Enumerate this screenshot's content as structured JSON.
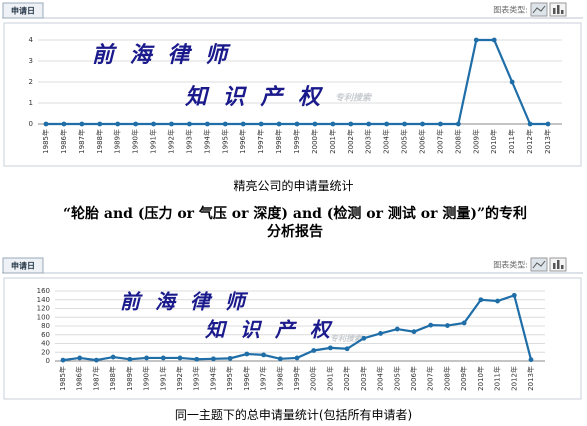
{
  "heading": "“轮胎 and (压力 or 气压 or 深度) and (检测 or 测试 or 测量)”的专利分析报告",
  "chart_data": [
    {
      "type": "line",
      "tab": "申请日",
      "chart_type_label": "图表类型:",
      "annotations": [
        "前 海 律 师",
        "知 识 产 权",
        "专利搜索"
      ],
      "caption": "精亮公司的申请量统计",
      "categories": [
        "1985年",
        "1986年",
        "1987年",
        "1988年",
        "1989年",
        "1990年",
        "1991年",
        "1992年",
        "1993年",
        "1994年",
        "1995年",
        "1996年",
        "1997年",
        "1998年",
        "1999年",
        "2000年",
        "2001年",
        "2002年",
        "2003年",
        "2004年",
        "2005年",
        "2006年",
        "2007年",
        "2008年",
        "2009年",
        "2010年",
        "2011年",
        "2012年",
        "2013年"
      ],
      "values": [
        0,
        0,
        0,
        0,
        0,
        0,
        0,
        0,
        0,
        0,
        0,
        0,
        0,
        0,
        0,
        0,
        0,
        0,
        0,
        0,
        0,
        0,
        0,
        0,
        4,
        4,
        2,
        0,
        0
      ],
      "color": "#1f6ea8",
      "ylim": [
        0,
        4
      ],
      "yticks": [
        0,
        1,
        2,
        3,
        4
      ],
      "grid": true
    },
    {
      "type": "line",
      "tab": "申请日",
      "chart_type_label": "图表类型:",
      "annotations": [
        "前 海 律 师",
        "知 识 产 权",
        "专利搜索"
      ],
      "caption": "同一主题下的总申请量统计(包括所有申请者)",
      "categories": [
        "1985年",
        "1986年",
        "1987年",
        "1988年",
        "1989年",
        "1990年",
        "1991年",
        "1992年",
        "1993年",
        "1994年",
        "1995年",
        "1996年",
        "1997年",
        "1998年",
        "1999年",
        "2000年",
        "2001年",
        "2002年",
        "2003年",
        "2004年",
        "2005年",
        "2006年",
        "2007年",
        "2008年",
        "2009年",
        "2010年",
        "2011年",
        "2012年",
        "2013年"
      ],
      "values": [
        2,
        7,
        2,
        9,
        4,
        7,
        7,
        7,
        4,
        5,
        6,
        16,
        14,
        5,
        7,
        24,
        30,
        28,
        52,
        63,
        73,
        67,
        82,
        81,
        87,
        140,
        137,
        150,
        3
      ],
      "color": "#1f6ea8",
      "ylim": [
        0,
        160
      ],
      "yticks": [
        0,
        20,
        40,
        60,
        80,
        100,
        120,
        140,
        160
      ],
      "grid": true
    }
  ]
}
